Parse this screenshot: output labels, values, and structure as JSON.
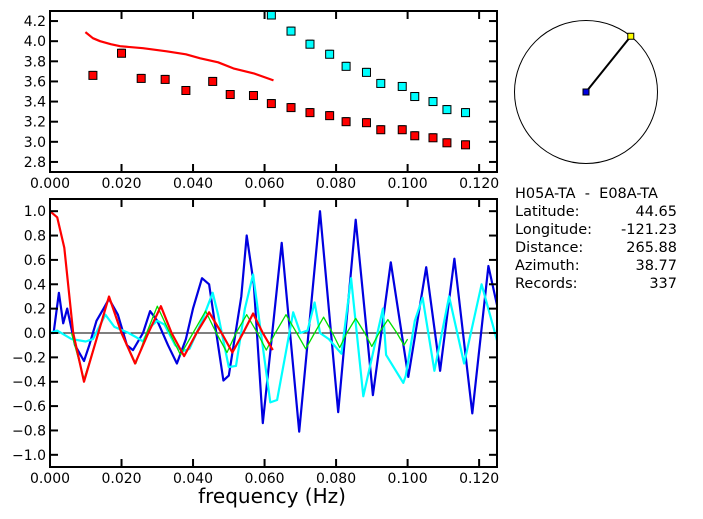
{
  "info": {
    "station_pair": "H05A-TA  -  E08A-TA",
    "rows": [
      {
        "label": "Latitude:",
        "value": "44.65"
      },
      {
        "label": "Longitude:",
        "value": "-121.23"
      },
      {
        "label": "Distance:",
        "value": "265.88"
      },
      {
        "label": "Azimuth:",
        "value": "38.77"
      },
      {
        "label": "Records:",
        "value": "337"
      }
    ],
    "azimuth_deg": 38.77
  },
  "colors": {
    "red": "#ff0000",
    "cyan": "#00ffff",
    "blue": "#0000e0",
    "green": "#00e000",
    "yellow": "#ffff00"
  },
  "chart_data": [
    {
      "type": "scatter",
      "xlim": [
        0,
        0.125
      ],
      "ylim": [
        2.7,
        4.3
      ],
      "xticks": [
        "0.000",
        "0.020",
        "0.040",
        "0.060",
        "0.080",
        "0.100",
        "0.120"
      ],
      "yticks": [
        "2.8",
        "3.0",
        "3.2",
        "3.4",
        "3.6",
        "3.8",
        "4.0",
        "4.2"
      ],
      "series": [
        {
          "color": "red",
          "kind": "markers",
          "x": [
            0.012,
            0.02,
            0.0255,
            0.0322,
            0.038,
            0.0455,
            0.0504,
            0.0569,
            0.0619,
            0.0674,
            0.0727,
            0.0782,
            0.0828,
            0.0885,
            0.0925,
            0.0985,
            0.102,
            0.1071,
            0.111,
            0.1162
          ],
          "y": [
            3.66,
            3.88,
            3.63,
            3.62,
            3.51,
            3.6,
            3.47,
            3.46,
            3.38,
            3.34,
            3.29,
            3.26,
            3.2,
            3.19,
            3.12,
            3.12,
            3.06,
            3.04,
            2.99,
            2.97
          ]
        },
        {
          "color": "cyan",
          "kind": "markers",
          "x": [
            0.0619,
            0.0674,
            0.0727,
            0.0782,
            0.0828,
            0.0885,
            0.0925,
            0.0985,
            0.102,
            0.1071,
            0.111,
            0.1162
          ],
          "y": [
            4.26,
            4.1,
            3.97,
            3.87,
            3.75,
            3.69,
            3.58,
            3.55,
            3.45,
            3.4,
            3.32,
            3.29
          ]
        },
        {
          "color": "red",
          "kind": "line",
          "x": [
            0.0099,
            0.012,
            0.014,
            0.017,
            0.0196,
            0.026,
            0.0326,
            0.038,
            0.042,
            0.047,
            0.0513,
            0.057,
            0.0625
          ],
          "y": [
            4.09,
            4.03,
            4.0,
            3.97,
            3.95,
            3.93,
            3.9,
            3.87,
            3.83,
            3.79,
            3.73,
            3.68,
            3.61
          ]
        }
      ]
    },
    {
      "type": "line",
      "xlabel": "frequency  (Hz)",
      "xlim": [
        0,
        0.125
      ],
      "ylim": [
        -1.1,
        1.1
      ],
      "xticks": [
        "0.000",
        "0.020",
        "0.040",
        "0.060",
        "0.080",
        "0.100",
        "0.120"
      ],
      "yticks": [
        "-1.0",
        "-0.8",
        "-0.6",
        "-0.4",
        "-0.2",
        "0.0",
        "0.2",
        "0.4",
        "0.6",
        "0.8",
        "1.0"
      ],
      "series": [
        {
          "color": "blue",
          "x": [
            0,
            0.001,
            0.0025,
            0.0037,
            0.0048,
            0.007,
            0.0095,
            0.011,
            0.013,
            0.015,
            0.0165,
            0.019,
            0.0215,
            0.0232,
            0.026,
            0.028,
            0.03,
            0.033,
            0.0355,
            0.038,
            0.04,
            0.0425,
            0.0445,
            0.047,
            0.0485,
            0.05,
            0.0535,
            0.055,
            0.057,
            0.0595,
            0.0648,
            0.0697,
            0.0755,
            0.0806,
            0.0855,
            0.0903,
            0.0953,
            0.1002,
            0.1052,
            0.1091,
            0.1131,
            0.1181,
            0.1226,
            0.125
          ],
          "y": [
            0,
            0,
            0.33,
            0.08,
            0.2,
            -0.1,
            -0.23,
            -0.1,
            0.1,
            0.2,
            0.28,
            0.15,
            -0.1,
            -0.14,
            0,
            0.18,
            0.1,
            -0.1,
            -0.25,
            -0.05,
            0.2,
            0.45,
            0.4,
            -0.1,
            -0.39,
            -0.35,
            0.3,
            0.8,
            0.4,
            -0.74,
            0.74,
            -0.81,
            1.0,
            -0.65,
            0.93,
            -0.51,
            0.58,
            -0.36,
            0.54,
            -0.31,
            0.61,
            -0.66,
            0.55,
            0.23
          ]
        },
        {
          "color": "cyan",
          "x": [
            0,
            0.002,
            0.006,
            0.01,
            0.012,
            0.0155,
            0.018,
            0.022,
            0.025,
            0.026,
            0.028,
            0.03,
            0.032,
            0.035,
            0.037,
            0.039,
            0.0425,
            0.0455,
            0.047,
            0.05,
            0.052,
            0.0545,
            0.0568,
            0.0616,
            0.0635,
            0.068,
            0.07,
            0.072,
            0.074,
            0.0755,
            0.078,
            0.0815,
            0.0842,
            0.0876,
            0.0931,
            0.094,
            0.0988,
            0.0995,
            0.102,
            0.1042,
            0.1075,
            0.1116,
            0.1158,
            0.1207,
            0.125
          ],
          "y": [
            0,
            0.02,
            -0.05,
            -0.07,
            -0.05,
            0.15,
            0.05,
            0,
            -0.05,
            -0.07,
            0.05,
            0.1,
            0.07,
            -0.1,
            -0.15,
            -0.13,
            0.1,
            0.33,
            0.15,
            -0.28,
            -0.27,
            0.2,
            0.48,
            -0.57,
            -0.55,
            0.17,
            0,
            0.02,
            0.25,
            0,
            -0.05,
            -0.17,
            0.45,
            -0.52,
            0.2,
            -0.18,
            -0.41,
            -0.35,
            0.1,
            0.29,
            -0.31,
            0.3,
            -0.25,
            0.4,
            -0.06
          ]
        },
        {
          "color": "green",
          "x": [
            0.006,
            0.0095,
            0.0135,
            0.0165,
            0.02,
            0.024,
            0.027,
            0.03,
            0.0335,
            0.0365,
            0.04,
            0.0435,
            0.0465,
            0.0495,
            0.052,
            0.055,
            0.058,
            0.0605,
            0.063,
            0.066,
            0.069,
            0.0715,
            0.074,
            0.0765,
            0.079,
            0.081,
            0.083,
            0.0855,
            0.088,
            0.09,
            0.092,
            0.0945,
            0.097,
            0.099,
            0.1
          ],
          "y": [
            0,
            -0.38,
            0,
            0.3,
            0,
            -0.25,
            0,
            0.22,
            0,
            -0.18,
            0,
            0.18,
            0,
            -0.16,
            0,
            0.15,
            0,
            -0.14,
            0,
            0.15,
            0,
            -0.13,
            0,
            0.13,
            0,
            -0.12,
            0,
            0.12,
            0,
            -0.11,
            0,
            0.11,
            0,
            -0.1,
            -0.05
          ]
        },
        {
          "color": "red",
          "x": [
            0,
            0.002,
            0.004,
            0.0065,
            0.0095,
            0.0135,
            0.0165,
            0.02,
            0.0238,
            0.0275,
            0.031,
            0.034,
            0.0375,
            0.041,
            0.0445,
            0.048,
            0.051,
            0.054,
            0.0568,
            0.0595,
            0.0623
          ],
          "y": [
            1.0,
            0.95,
            0.7,
            0,
            -0.4,
            0,
            0.3,
            0,
            -0.25,
            0,
            0.22,
            0,
            -0.19,
            0,
            0.17,
            0,
            -0.16,
            0,
            0.16,
            0,
            -0.14
          ]
        }
      ]
    }
  ]
}
